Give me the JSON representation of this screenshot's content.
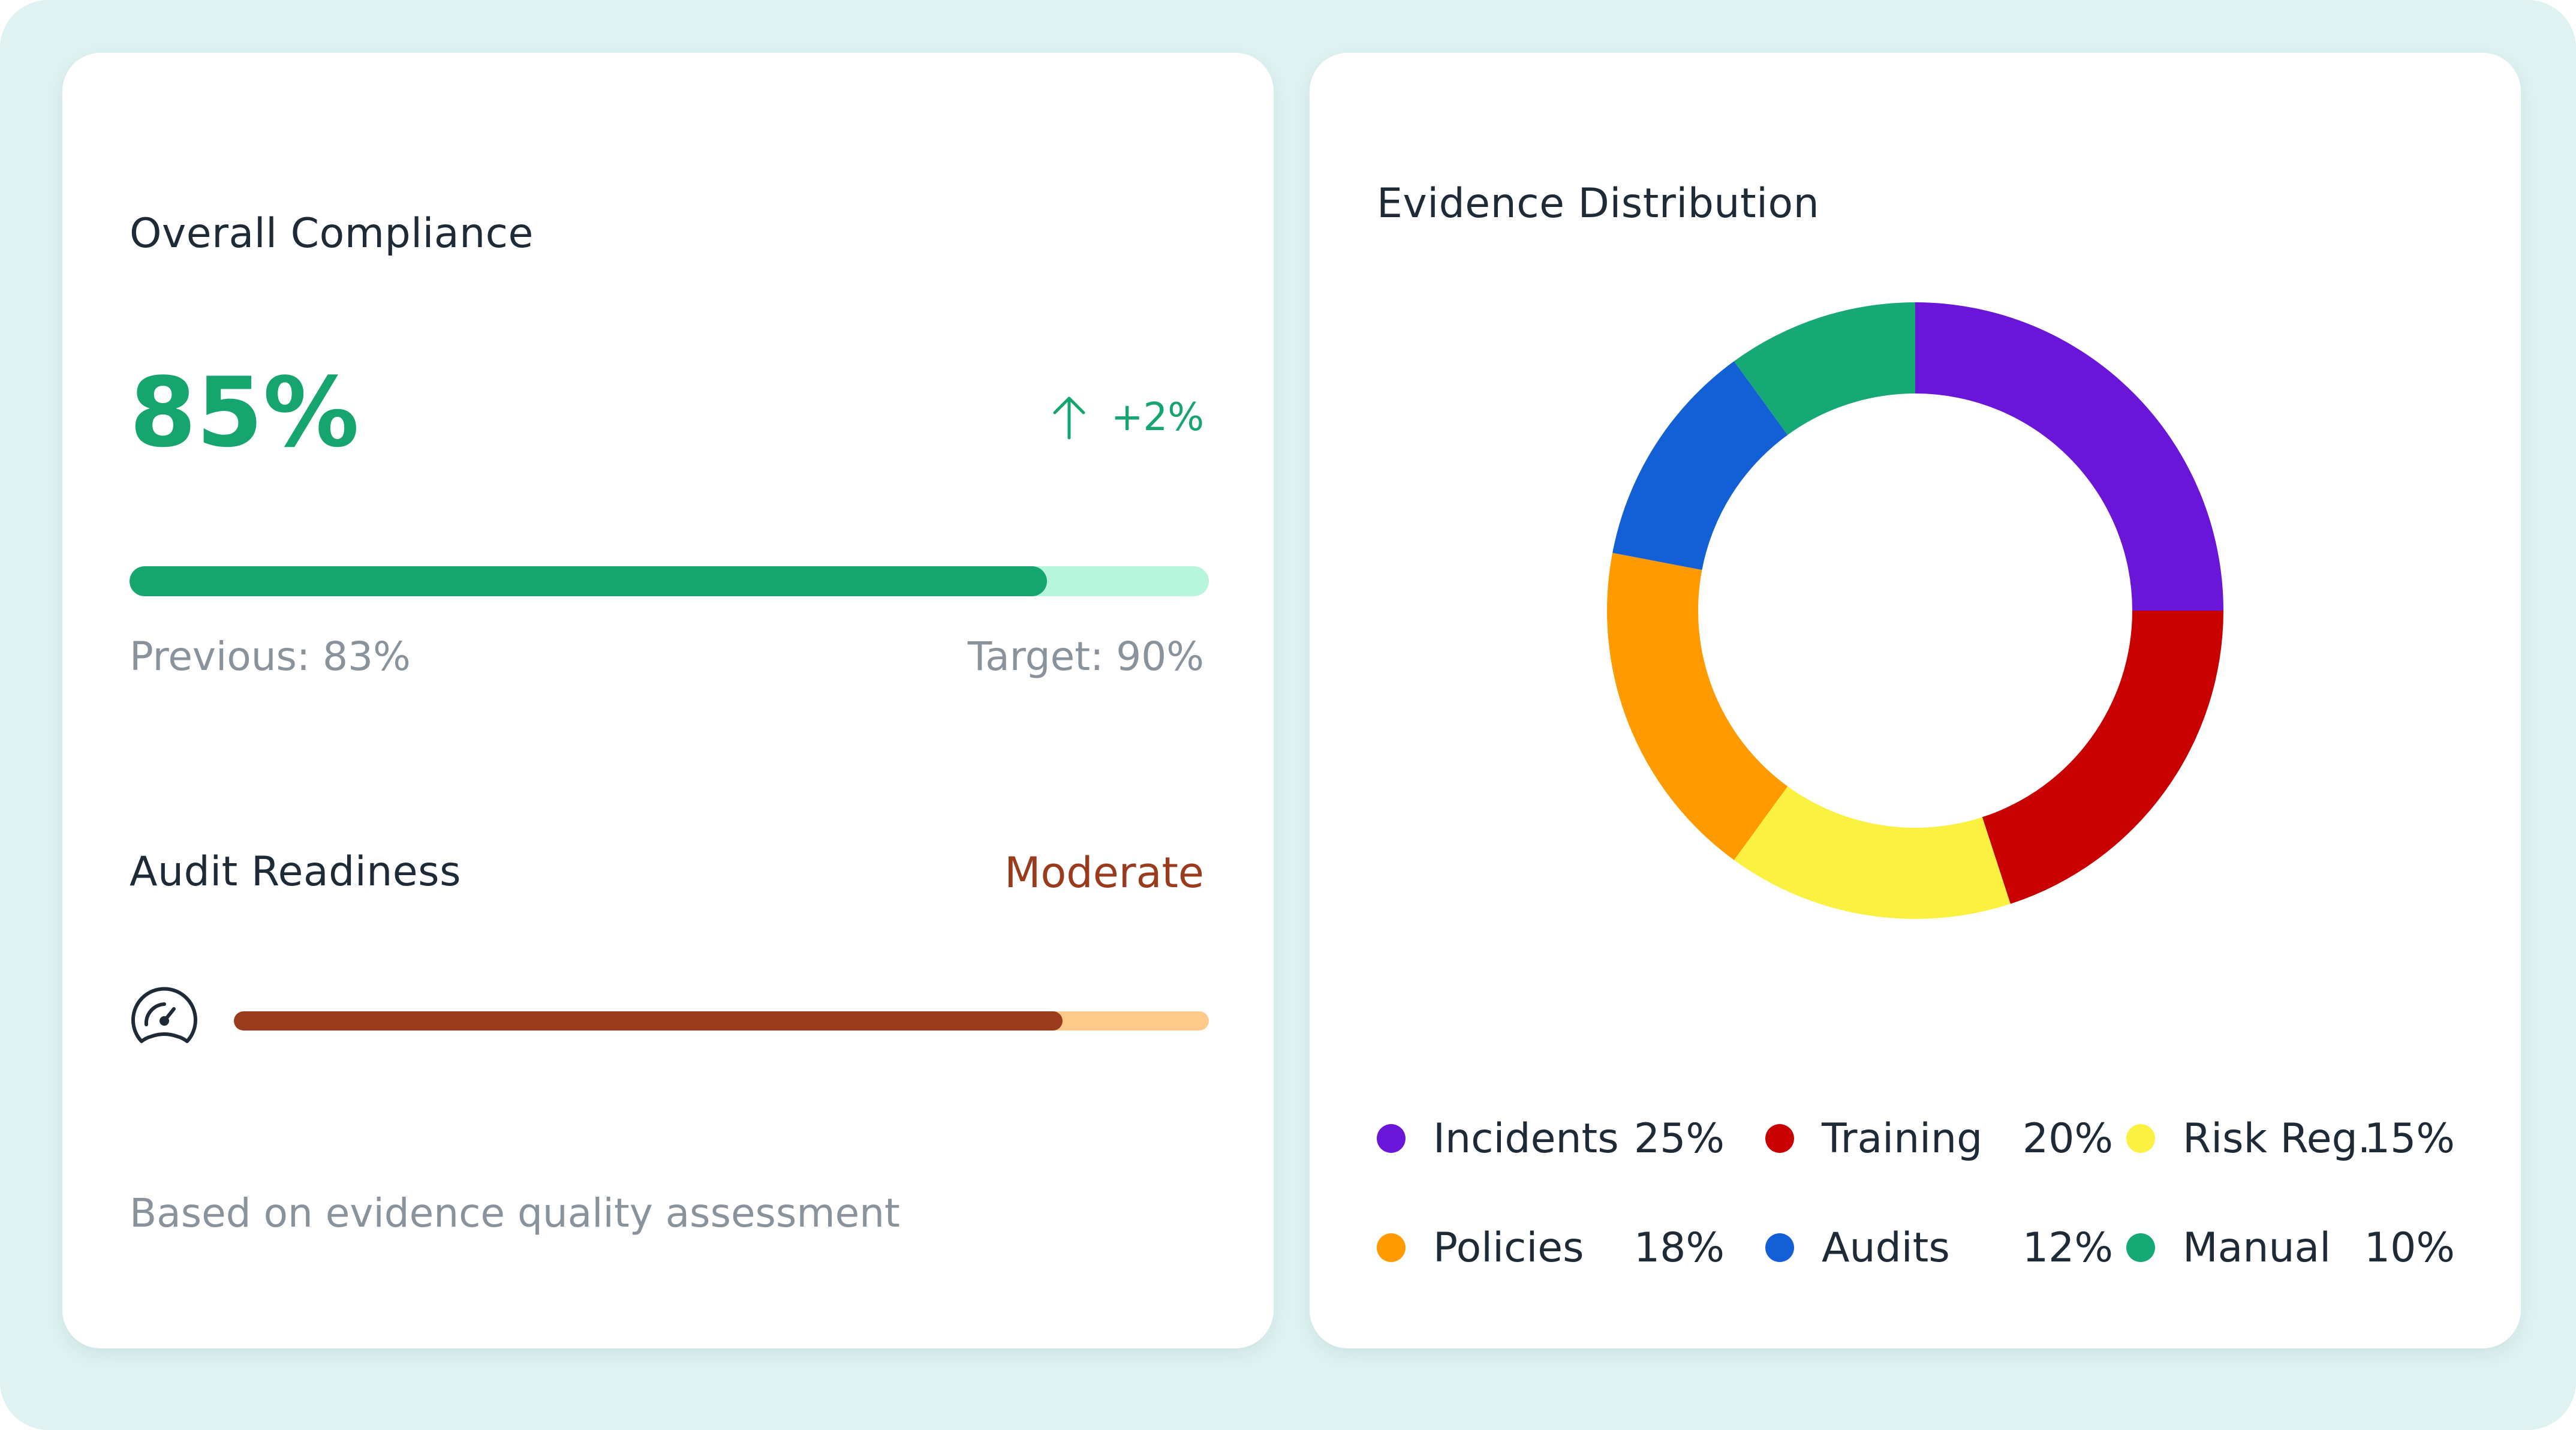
{
  "compliance": {
    "title": "Overall Compliance",
    "value": "85%",
    "fraction": 0.85,
    "delta": "+2%",
    "previous": "Previous: 83%",
    "target": "Target: 90%",
    "bar_color": "#16a56f",
    "track_color": "#b7f5dc"
  },
  "readiness": {
    "title": "Audit Readiness",
    "status": "Moderate",
    "fraction": 0.85,
    "icon": "gauge-icon",
    "note": "Based on evidence quality assessment",
    "bar_color": "#9a3b1d",
    "track_color": "#ffc98a"
  },
  "distribution": {
    "title": "Evidence Distribution",
    "legend": [
      {
        "label": "Incidents",
        "pct": "25%",
        "color": "#6a16d8"
      },
      {
        "label": "Training",
        "pct": "20%",
        "color": "#c90000"
      },
      {
        "label": "Risk Reg.",
        "pct": "15%",
        "color": "#fbf140"
      },
      {
        "label": "Policies",
        "pct": "18%",
        "color": "#ff9a00"
      },
      {
        "label": "Audits",
        "pct": "12%",
        "color": "#1360d6"
      },
      {
        "label": "Manual",
        "pct": "10%",
        "color": "#16a975"
      }
    ]
  },
  "chart_data": {
    "type": "pie",
    "title": "Evidence Distribution",
    "categories": [
      "Incidents",
      "Training",
      "Risk Reg.",
      "Policies",
      "Audits",
      "Manual"
    ],
    "values": [
      25,
      20,
      15,
      18,
      12,
      10
    ],
    "colors": [
      "#6a16d8",
      "#c90000",
      "#fbf140",
      "#ff9a00",
      "#1360d6",
      "#16a975"
    ],
    "donut": true,
    "legend": "bottom"
  }
}
